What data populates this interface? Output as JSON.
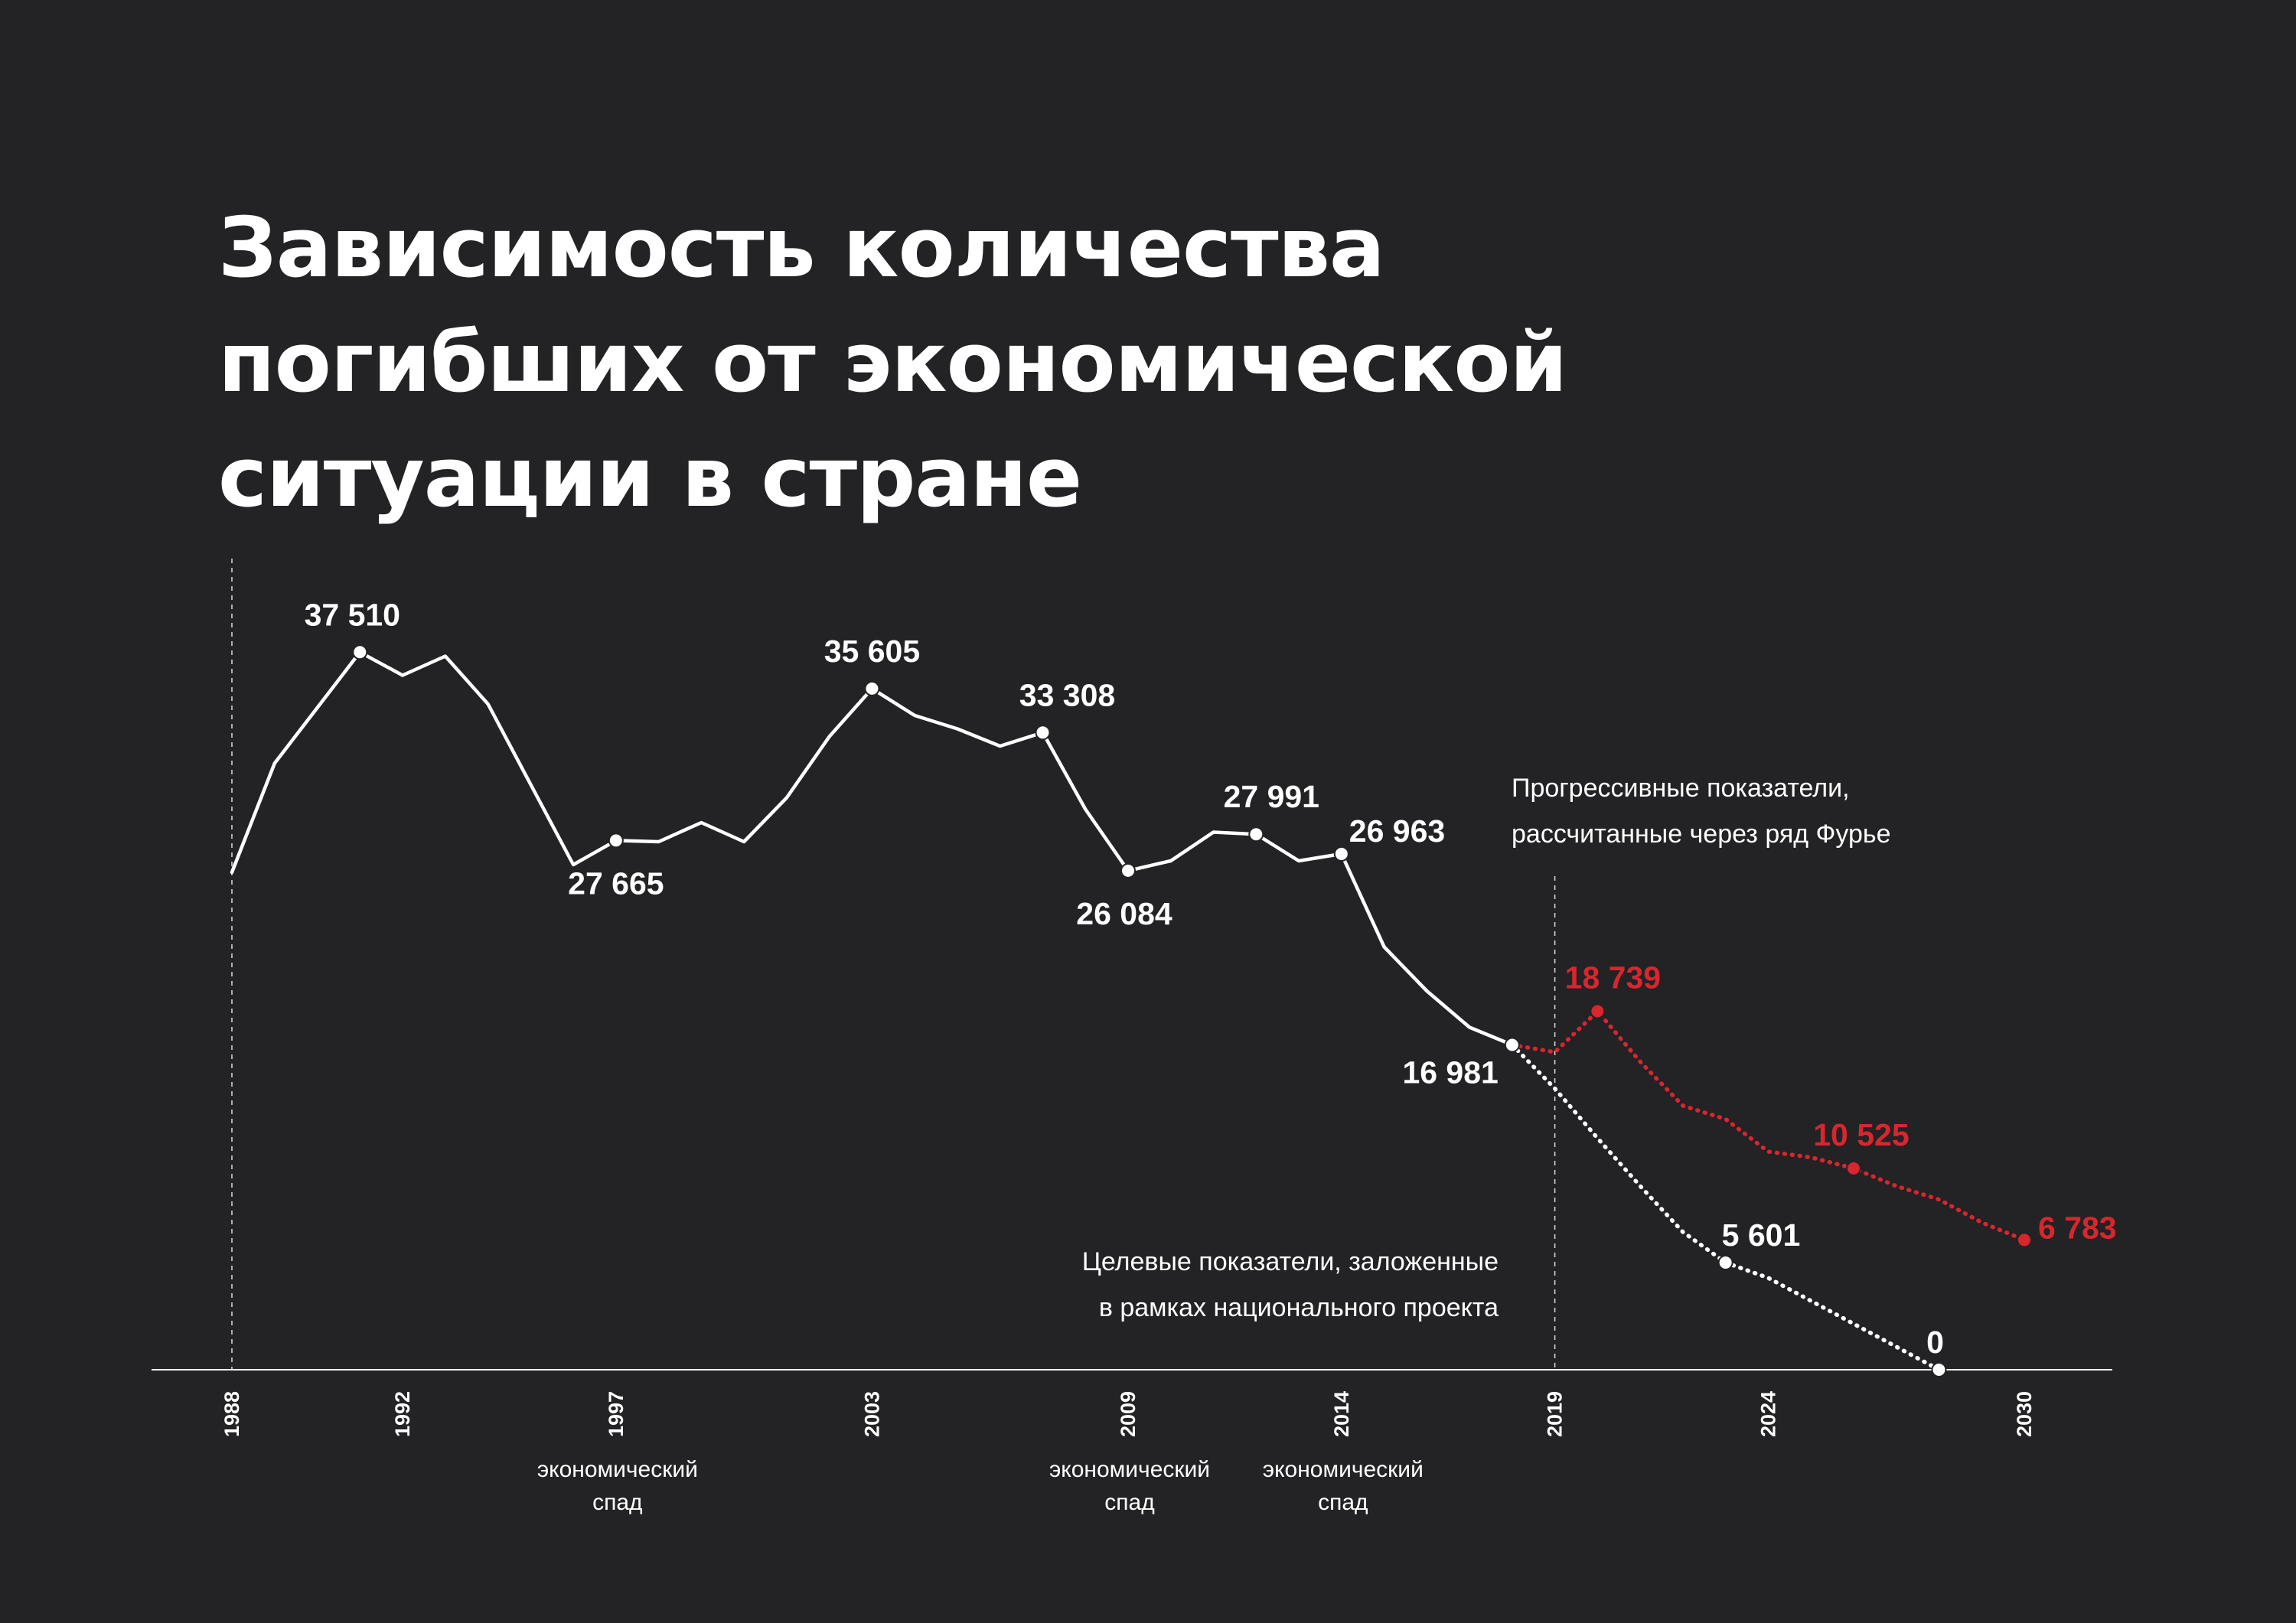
{
  "title_lines": [
    "Зависимость количества",
    "погибших от экономической",
    "ситуации в стране"
  ],
  "colors": {
    "background": "#232224",
    "main": "#ffffff",
    "progressive": "#d8262f"
  },
  "chart_data": {
    "type": "line",
    "xlim": [
      1988,
      2030
    ],
    "ylim": [
      0,
      40000
    ],
    "x_ticks": [
      "1988",
      "1992",
      "1997",
      "2003",
      "2009",
      "2014",
      "2019",
      "2024",
      "2030"
    ],
    "series": [
      {
        "style": "solid",
        "points": [
          [
            1988,
            26000
          ],
          [
            1989,
            31700
          ],
          [
            1990,
            34600
          ],
          [
            1991,
            37510
          ],
          [
            1992,
            36300
          ],
          [
            1993,
            37300
          ],
          [
            1994,
            34800
          ],
          [
            1995,
            30600
          ],
          [
            1996,
            26400
          ],
          [
            1997,
            27665
          ],
          [
            1998,
            27600
          ],
          [
            1999,
            28600
          ],
          [
            2000,
            27600
          ],
          [
            2001,
            29900
          ],
          [
            2002,
            33100
          ],
          [
            2003,
            35605
          ],
          [
            2004,
            34200
          ],
          [
            2005,
            33500
          ],
          [
            2006,
            32600
          ],
          [
            2007,
            33308
          ],
          [
            2008,
            29300
          ],
          [
            2009,
            26084
          ],
          [
            2010,
            26600
          ],
          [
            2011,
            28100
          ],
          [
            2012,
            27991
          ],
          [
            2013,
            26600
          ],
          [
            2014,
            26963
          ],
          [
            2015,
            22100
          ],
          [
            2016,
            19800
          ],
          [
            2017,
            17900
          ],
          [
            2018,
            16981
          ]
        ]
      },
      {
        "name": "Целевые показатели",
        "style": "dotted",
        "points": [
          [
            2018,
            16981
          ],
          [
            2019,
            14700
          ],
          [
            2020,
            12100
          ],
          [
            2021,
            9600
          ],
          [
            2022,
            7200
          ],
          [
            2023,
            5601
          ],
          [
            2024,
            4800
          ],
          [
            2025,
            3600
          ],
          [
            2026,
            2400
          ],
          [
            2027,
            1200
          ],
          [
            2028,
            0
          ]
        ]
      },
      {
        "name": "Прогрессивные показатели",
        "style": "dotted",
        "points": [
          [
            2018,
            16981
          ],
          [
            2019,
            16600
          ],
          [
            2020,
            18739
          ],
          [
            2021,
            16100
          ],
          [
            2022,
            13800
          ],
          [
            2023,
            13100
          ],
          [
            2024,
            11400
          ],
          [
            2025,
            11100
          ],
          [
            2026,
            10525
          ],
          [
            2027,
            9600
          ],
          [
            2028,
            8900
          ],
          [
            2029,
            7700
          ],
          [
            2030,
            6783
          ]
        ]
      }
    ],
    "data_labels": [
      {
        "series": 0,
        "x": 1991,
        "text": "37 510"
      },
      {
        "series": 0,
        "x": 1997,
        "text": "27 665"
      },
      {
        "series": 0,
        "x": 2003,
        "text": "35 605"
      },
      {
        "series": 0,
        "x": 2007,
        "text": "33 308"
      },
      {
        "series": 0,
        "x": 2009,
        "text": "26 084"
      },
      {
        "series": 0,
        "x": 2012,
        "text": "27 991"
      },
      {
        "series": 0,
        "x": 2014,
        "text": "26 963"
      },
      {
        "series": 0,
        "x": 2018,
        "text": "16 981"
      },
      {
        "series": 1,
        "x": 2023,
        "text": "5 601"
      },
      {
        "series": 1,
        "x": 2028,
        "text": "0"
      },
      {
        "series": 2,
        "x": 2020,
        "text": "18 739"
      },
      {
        "series": 2,
        "x": 2026,
        "text": "10 525"
      },
      {
        "series": 2,
        "x": 2030,
        "text": "6 783"
      }
    ],
    "reference_lines": [
      1988,
      2019
    ],
    "annotations": {
      "progressive": [
        "Прогрессивные показатели,",
        "рассчитанные через ряд Фурье"
      ],
      "target": [
        "Целевые показатели, заложенные",
        "в рамках национального проекта"
      ]
    },
    "crisis_labels": [
      {
        "x": 1997,
        "lines": [
          "экономический",
          "спад"
        ]
      },
      {
        "x": 2009,
        "lines": [
          "экономический",
          "спад"
        ]
      },
      {
        "x": 2014,
        "lines": [
          "экономический",
          "спад"
        ]
      }
    ]
  }
}
